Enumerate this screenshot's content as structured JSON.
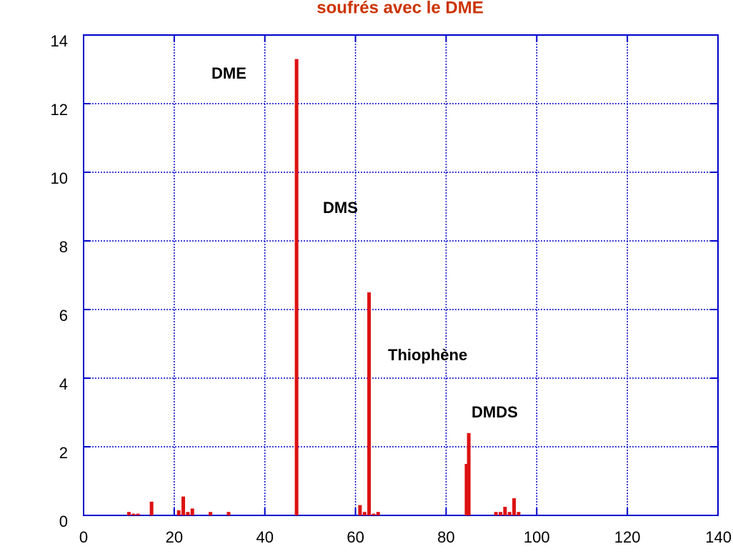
{
  "chart_data": {
    "type": "bar",
    "title": "soufrés avec le DME",
    "x": [
      10,
      11,
      12,
      15,
      21,
      22,
      23,
      24,
      28,
      32,
      47,
      61,
      62,
      63,
      64,
      65,
      84.5,
      85,
      91,
      92,
      93,
      94,
      95,
      96
    ],
    "values": [
      0.1,
      0.05,
      0.05,
      0.4,
      0.15,
      0.55,
      0.1,
      0.2,
      0.1,
      0.1,
      13.3,
      0.3,
      0.1,
      6.5,
      0.05,
      0.1,
      1.5,
      2.4,
      0.1,
      0.1,
      0.25,
      0.1,
      0.5,
      0.1
    ],
    "color": "#dd1111",
    "xlim": [
      0,
      140
    ],
    "xticks": [
      0,
      20,
      40,
      60,
      80,
      100,
      120,
      140
    ],
    "ylim": [
      0,
      14
    ],
    "yticks": [
      0,
      2,
      4,
      6,
      8,
      10,
      12,
      14
    ],
    "grid": true,
    "annotations": [
      "DME",
      "DMS",
      "Thiophène",
      "DMDS"
    ]
  }
}
